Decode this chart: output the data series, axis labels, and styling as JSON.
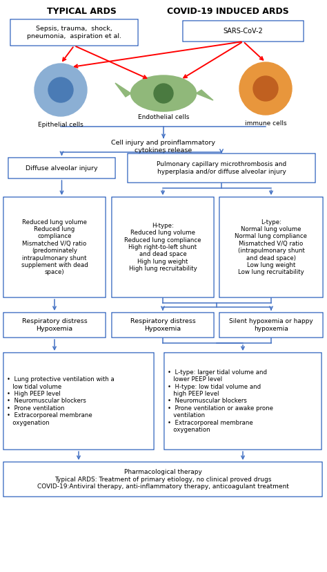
{
  "title_left": "TYPICAL ARDS",
  "title_right": "COVID-19 INDUCED ARDS",
  "box1_text": "Sepsis, trauma,  shock,\npneumonia,  aspiration et al.",
  "box2_text": "SARS-CoV-2",
  "cell1_label": "Epithelial cells",
  "cell2_label": "Endothelial cells",
  "cell3_label": "immune cells",
  "connector_text": "Cell injury and proinflammatory\ncytokines release",
  "box3_text": "Diffuse alveolar injury",
  "box4_text": "Pulmonary capillary microthrombosis and\nhyperplasia and/or diffuse alveolar injury",
  "box5_text": "Reduced lung volume\nReduced lung\ncompliance\nMismatched V/Q ratio\n(predominately\nintrapulmonary shunt\nsupplement with dead\nspace)",
  "box6_text": "H-type:\nReduced lung volume\nReduced lung compliance\nHigh right-to-left shunt\nand dead space\nHigh lung weight\nHigh lung recruitability",
  "box7_text": "L-type:\nNormal lung volume\nNormal lung compliance\nMismatched V/Q ratio\n(intrapulmonary shunt\nand dead space)\nLow lung weight\nLow lung recruitability",
  "box8_text": "Respiratory distress\nHypoxemia",
  "box9_text": "Respiratory distress\nHypoxemia",
  "box10_text": "Silent hypoxemia or happy\nhypoxemia",
  "box11_text": "•  Lung protective ventilation with a\n   low tidal volume\n•  High PEEP level\n•  Neuromuscular blockers\n•  Prone ventilation\n•  Extracorporeal membrane\n   oxygenation",
  "box12_text": "•  L-type: larger tidal volume and\n   lower PEEP level\n•  H-type: low tidal volume and\n   high PEEP level\n•  Neuromuscular blockers\n•  Prone ventilation or awake prone\n   ventilation\n•  Extracorporeal membrane\n   oxygenation",
  "box13_text": "Pharmacological therapy\nTypical ARDS: Treatment of primary etiology, no clinical proved drugs\nCOVID-19:Antiviral therapy, anti-inflammatory therapy, anticoagulant treatment",
  "blue": "#4472C4",
  "red": "#FF0000",
  "white": "#FFFFFF",
  "cell1_outer": "#8BAFD4",
  "cell1_inner": "#4A7BB5",
  "cell2_outer": "#90B87A",
  "cell2_inner": "#4A7A40",
  "cell3_outer": "#E8963C",
  "cell3_inner": "#C06020"
}
